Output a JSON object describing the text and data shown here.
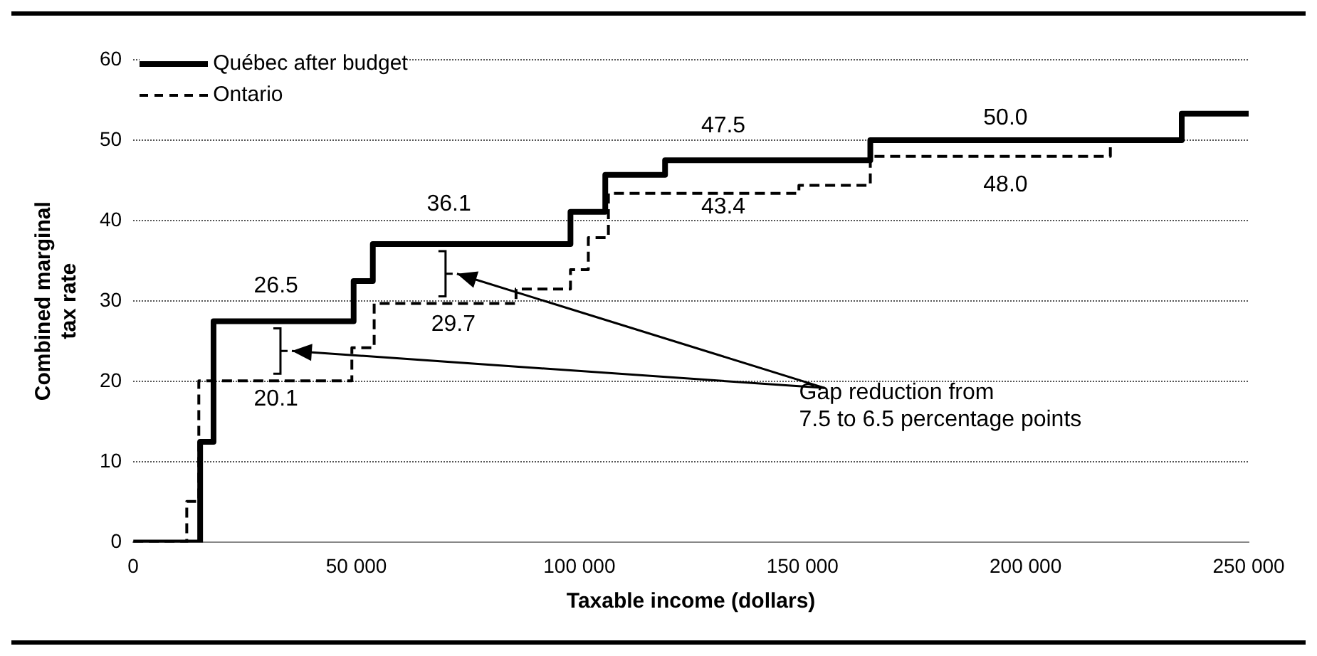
{
  "chart_data": {
    "type": "step",
    "xlabel": "Taxable income (dollars)",
    "ylabel": "Combined marginal tax rate",
    "xlim": [
      0,
      250000
    ],
    "xticks": [
      {
        "value": 0,
        "label": "0"
      },
      {
        "value": 50000,
        "label": "50 000"
      },
      {
        "value": 100000,
        "label": "100 000"
      },
      {
        "value": 150000,
        "label": "150 000"
      },
      {
        "value": 200000,
        "label": "200 000"
      },
      {
        "value": 250000,
        "label": "250 000"
      }
    ],
    "ylim": [
      0,
      60
    ],
    "yticks": [
      0,
      10,
      20,
      30,
      40,
      50,
      60
    ],
    "grid": "y",
    "legend": "top left",
    "series": [
      {
        "name": "Québec after budget",
        "color": "#000000",
        "line_style": "solid",
        "x": [
          0,
          15000,
          18000,
          49400,
          53700,
          98000,
          105800,
          119200,
          165200,
          235000,
          250000
        ],
        "values": [
          0,
          12.5,
          27.5,
          32.5,
          37.1,
          41.1,
          45.7,
          47.5,
          50.0,
          53.3,
          53.3
        ]
      },
      {
        "name": "Ontario",
        "color": "#000000",
        "line_style": "dashed",
        "x": [
          0,
          12000,
          14700,
          49000,
          54000,
          85800,
          98000,
          102000,
          106500,
          149200,
          165200,
          219000,
          235000,
          250000
        ],
        "values": [
          0,
          5.1,
          20.1,
          24.2,
          29.7,
          31.5,
          33.9,
          37.9,
          43.4,
          44.4,
          48.0,
          50.0,
          53.3,
          53.3
        ]
      }
    ],
    "annotations": [
      "26.5",
      "20.1",
      "36.1",
      "29.7",
      "47.5",
      "43.4",
      "50.0",
      "48.0",
      "Gap reduction from\n7.5 to 6.5 percentage points"
    ]
  }
}
